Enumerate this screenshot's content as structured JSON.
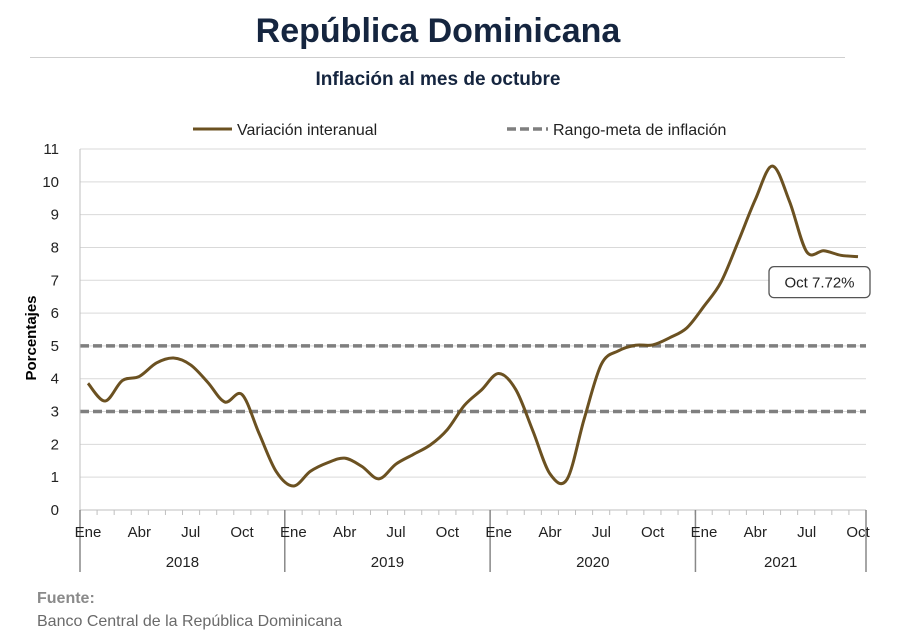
{
  "header": {
    "title": "República Dominicana",
    "subtitle": "Inflación al mes de octubre"
  },
  "footer": {
    "source_label": "Fuente:",
    "source_text": "Banco Central de la República Dominicana"
  },
  "colors": {
    "series_line": "#6b5121",
    "target_line": "#7f7f7f",
    "grid": "#d9d9d9",
    "axis": "#bfbfbf"
  },
  "chart_data": {
    "type": "line",
    "ylabel": "Porcentajes",
    "ylim": [
      0,
      11
    ],
    "yticks": [
      0,
      1,
      2,
      3,
      4,
      5,
      6,
      7,
      8,
      9,
      10,
      11
    ],
    "grid": "horizontal",
    "legend_position": "top",
    "x_month_labels": [
      "Ene",
      "Abr",
      "Jul",
      "Oct",
      "Ene",
      "Abr",
      "Jul",
      "Oct",
      "Ene",
      "Abr",
      "Jul",
      "Oct",
      "Ene",
      "Abr",
      "Jul",
      "Oct"
    ],
    "x_month_index": [
      0,
      3,
      6,
      9,
      12,
      15,
      18,
      21,
      24,
      27,
      30,
      33,
      36,
      39,
      42,
      45
    ],
    "year_labels": [
      "2018",
      "2019",
      "2020",
      "2021"
    ],
    "series": [
      {
        "name": "Variación interanual",
        "style": "solid",
        "values": [
          3.86,
          3.32,
          3.94,
          4.07,
          4.48,
          4.63,
          4.42,
          3.89,
          3.29,
          3.52,
          2.33,
          1.17,
          0.73,
          1.18,
          1.44,
          1.58,
          1.33,
          0.95,
          1.4,
          1.69,
          1.98,
          2.45,
          3.19,
          3.66,
          4.16,
          3.67,
          2.41,
          1.1,
          0.94,
          2.78,
          4.44,
          4.85,
          5.02,
          5.03,
          5.25,
          5.55,
          6.21,
          6.95,
          8.18,
          9.46,
          10.48,
          9.4,
          7.87,
          7.9,
          7.76,
          7.72
        ]
      },
      {
        "name": "Rango-meta de inflación",
        "style": "dashed",
        "bands": [
          3,
          5
        ]
      }
    ],
    "annotation": {
      "text": "Oct 7.72%",
      "month_index": 45,
      "value": 7.72
    }
  }
}
